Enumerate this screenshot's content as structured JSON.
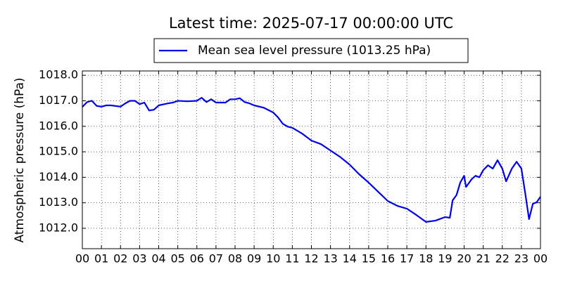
{
  "chart_data": {
    "type": "line",
    "title": "Latest time: 2025-07-17 00:00:00 UTC",
    "y_label": "Atmospheric pressure (hPa)",
    "x": [
      0,
      0.25,
      0.5,
      0.75,
      1,
      1.25,
      1.5,
      2,
      2.25,
      2.5,
      2.75,
      3,
      3.25,
      3.5,
      3.75,
      4,
      4.5,
      4.75,
      5,
      5.5,
      6,
      6.25,
      6.5,
      6.75,
      7,
      7.5,
      7.75,
      8,
      8.25,
      8.5,
      8.75,
      9,
      9.5,
      10,
      10.25,
      10.5,
      10.75,
      11,
      11.5,
      12,
      12.5,
      13,
      13.5,
      14,
      14.5,
      15,
      15.5,
      16,
      16.5,
      17,
      17.5,
      18,
      18.5,
      19,
      19.25,
      19.4,
      19.6,
      19.8,
      20,
      20.1,
      20.4,
      20.6,
      20.8,
      21,
      21.25,
      21.5,
      21.75,
      22,
      22.2,
      22.5,
      22.75,
      23,
      23.2,
      23.4,
      23.6,
      23.8,
      24
    ],
    "series": [
      {
        "name": "Mean sea level pressure (1013.25 hPa)",
        "color": "#0000ee",
        "values": [
          1016.76,
          1016.95,
          1017.0,
          1016.8,
          1016.77,
          1016.82,
          1016.82,
          1016.77,
          1016.9,
          1017.0,
          1017.0,
          1016.87,
          1016.93,
          1016.62,
          1016.65,
          1016.82,
          1016.9,
          1016.93,
          1017.0,
          1016.98,
          1017.0,
          1017.12,
          1016.95,
          1017.06,
          1016.93,
          1016.93,
          1017.06,
          1017.06,
          1017.1,
          1016.95,
          1016.9,
          1016.82,
          1016.73,
          1016.54,
          1016.35,
          1016.1,
          1015.99,
          1015.94,
          1015.72,
          1015.44,
          1015.3,
          1015.05,
          1014.8,
          1014.5,
          1014.12,
          1013.79,
          1013.43,
          1013.07,
          1012.88,
          1012.77,
          1012.52,
          1012.25,
          1012.3,
          1012.44,
          1012.41,
          1013.1,
          1013.3,
          1013.8,
          1014.06,
          1013.62,
          1013.93,
          1014.06,
          1014.0,
          1014.28,
          1014.47,
          1014.34,
          1014.67,
          1014.34,
          1013.84,
          1014.34,
          1014.61,
          1014.34,
          1013.38,
          1012.36,
          1012.96,
          1013.02,
          1013.24
        ]
      }
    ],
    "xlim": [
      0,
      24
    ],
    "xticks": [
      {
        "value": 0,
        "label": "00"
      },
      {
        "value": 1,
        "label": "01"
      },
      {
        "value": 2,
        "label": "02"
      },
      {
        "value": 3,
        "label": "03"
      },
      {
        "value": 4,
        "label": "04"
      },
      {
        "value": 5,
        "label": "05"
      },
      {
        "value": 6,
        "label": "06"
      },
      {
        "value": 7,
        "label": "07"
      },
      {
        "value": 8,
        "label": "08"
      },
      {
        "value": 9,
        "label": "09"
      },
      {
        "value": 10,
        "label": "10"
      },
      {
        "value": 11,
        "label": "11"
      },
      {
        "value": 12,
        "label": "12"
      },
      {
        "value": 13,
        "label": "13"
      },
      {
        "value": 14,
        "label": "14"
      },
      {
        "value": 15,
        "label": "15"
      },
      {
        "value": 16,
        "label": "16"
      },
      {
        "value": 17,
        "label": "17"
      },
      {
        "value": 18,
        "label": "18"
      },
      {
        "value": 19,
        "label": "19"
      },
      {
        "value": 20,
        "label": "20"
      },
      {
        "value": 21,
        "label": "21"
      },
      {
        "value": 22,
        "label": "22"
      },
      {
        "value": 23,
        "label": "23"
      },
      {
        "value": 24,
        "label": "00"
      }
    ],
    "ylim": [
      1011.2,
      1018.17
    ],
    "yticks": [
      {
        "value": 1012,
        "label": "1012.0"
      },
      {
        "value": 1013,
        "label": "1013.0"
      },
      {
        "value": 1014,
        "label": "1014.0"
      },
      {
        "value": 1015,
        "label": "1015.0"
      },
      {
        "value": 1016,
        "label": "1016.0"
      },
      {
        "value": 1017,
        "label": "1017.0"
      },
      {
        "value": 1018,
        "label": "1018.0"
      }
    ],
    "grid": true,
    "legend": "top"
  }
}
